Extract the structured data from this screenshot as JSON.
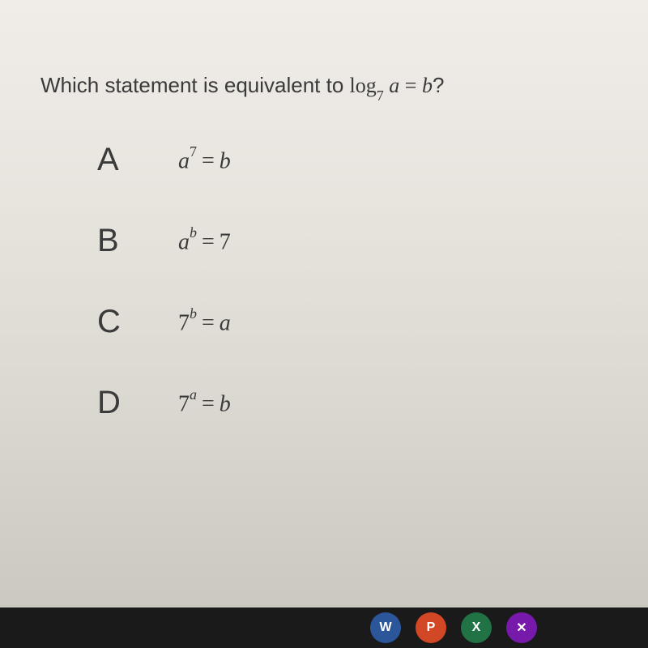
{
  "question": {
    "prefix": "Which statement is equivalent to ",
    "math_log": "log",
    "math_sub": "7",
    "math_var": "a",
    "math_eq": "=",
    "math_rhs": "b",
    "suffix": "?"
  },
  "options": [
    {
      "letter": "A",
      "base": "a",
      "exp": "7",
      "rhs": "b",
      "rhs_italic": true
    },
    {
      "letter": "B",
      "base": "a",
      "exp": "b",
      "rhs": "7",
      "rhs_italic": false
    },
    {
      "letter": "C",
      "base": "7",
      "exp": "b",
      "rhs": "a",
      "rhs_italic": true,
      "base_italic": false
    },
    {
      "letter": "D",
      "base": "7",
      "exp": "a",
      "rhs": "b",
      "rhs_italic": true,
      "base_italic": false
    }
  ],
  "taskbar": {
    "word": "W",
    "ppt": "P",
    "excel": "X",
    "other": "●"
  },
  "styling": {
    "background_gradient": [
      "#f0ece8",
      "#e8e4de",
      "#dcd8d2",
      "#c8c4be"
    ],
    "text_color": "#3a3a3a",
    "question_fontsize": 26,
    "letter_fontsize": 40,
    "expr_fontsize": 28,
    "taskbar_bg": "#1a1a1a",
    "icon_colors": {
      "word": "#2b579a",
      "ppt": "#d24726",
      "excel": "#217346",
      "other": "#7719aa"
    }
  }
}
